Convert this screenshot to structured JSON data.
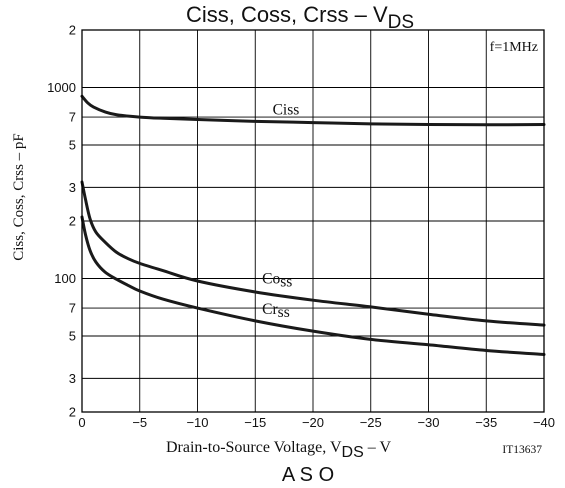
{
  "chart_data": {
    "type": "line",
    "title": {
      "main": "Ciss, Coss, Crss – V",
      "sub": "DS"
    },
    "ylabel": "Ciss, Coss, Crss – pF",
    "xlabel": {
      "main": "Drain-to-Source Voltage, V",
      "sub": "DS",
      "unit": " – V"
    },
    "annotation": "f=1MHz",
    "figure_id": "IT13637",
    "bottom_caption": "A S O",
    "x_scale": "linear",
    "y_scale": "log",
    "xlim": [
      0,
      -40
    ],
    "ylim": [
      20,
      2000
    ],
    "grid": true,
    "x_ticks": [
      {
        "v": 0,
        "t": "0"
      },
      {
        "v": -5,
        "t": "−5"
      },
      {
        "v": -10,
        "t": "−10"
      },
      {
        "v": -15,
        "t": "−15"
      },
      {
        "v": -20,
        "t": "−20"
      },
      {
        "v": -25,
        "t": "−25"
      },
      {
        "v": -30,
        "t": "−30"
      },
      {
        "v": -35,
        "t": "−35"
      },
      {
        "v": -40,
        "t": "−40"
      }
    ],
    "y_ticks": [
      {
        "v": 2000,
        "t": "2"
      },
      {
        "v": 1000,
        "t": "1000"
      },
      {
        "v": 700,
        "t": "7"
      },
      {
        "v": 500,
        "t": "5"
      },
      {
        "v": 300,
        "t": "3"
      },
      {
        "v": 200,
        "t": "2"
      },
      {
        "v": 100,
        "t": "100"
      },
      {
        "v": 70,
        "t": "7"
      },
      {
        "v": 50,
        "t": "5"
      },
      {
        "v": 30,
        "t": "3"
      },
      {
        "v": 20,
        "t": "2"
      }
    ],
    "series": [
      {
        "name": "Ciss",
        "x": [
          0,
          -0.5,
          -1,
          -2,
          -3,
          -5,
          -7,
          -10,
          -15,
          -20,
          -25,
          -30,
          -35,
          -40
        ],
        "y": [
          900,
          830,
          790,
          745,
          720,
          700,
          690,
          680,
          665,
          655,
          645,
          640,
          638,
          640
        ]
      },
      {
        "name": "Coss",
        "x": [
          0,
          -0.3,
          -0.7,
          -1.2,
          -2,
          -3,
          -4,
          -5,
          -7,
          -10,
          -15,
          -20,
          -25,
          -30,
          -35,
          -40
        ],
        "y": [
          320,
          260,
          205,
          175,
          155,
          137,
          127,
          120,
          110,
          97,
          85,
          77,
          71,
          65,
          60,
          57
        ]
      },
      {
        "name": "Crss",
        "x": [
          0,
          -0.3,
          -0.7,
          -1.2,
          -2,
          -3,
          -4,
          -5,
          -7,
          -10,
          -15,
          -20,
          -25,
          -30,
          -35,
          -40
        ],
        "y": [
          210,
          170,
          140,
          122,
          108,
          99,
          92,
          86,
          78,
          70,
          60,
          53,
          48,
          45,
          42,
          40
        ]
      }
    ],
    "line_color": "#1a1a1a",
    "grid_color": "#000000"
  }
}
